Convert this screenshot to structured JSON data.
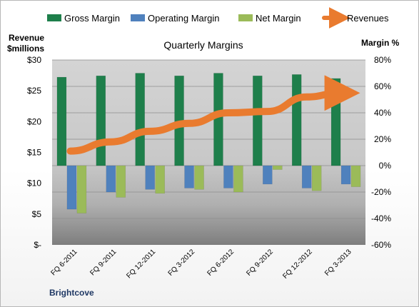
{
  "chart_data": {
    "type": "bar",
    "title": "Quarterly Margins",
    "left_axis_label_line1": "Revenue",
    "left_axis_label_line2": "$millions",
    "right_axis_label": "Margin %",
    "footer": "Brightcove",
    "categories": [
      "FQ 6-2011",
      "FQ 9-2011",
      "FQ 12-2011",
      "FQ 3-2012",
      "FQ 6-2012",
      "FQ 9-2012",
      "FQ 12-2012",
      "FQ 3-2013"
    ],
    "left_axis": {
      "ylim": [
        0,
        30
      ],
      "ticks": [
        0,
        5,
        10,
        15,
        20,
        25,
        30
      ],
      "tick_labels": [
        "$-",
        "$5",
        "$10",
        "$15",
        "$20",
        "$25",
        "$30"
      ]
    },
    "right_axis": {
      "ylim": [
        -60,
        80
      ],
      "ticks": [
        -60,
        -40,
        -20,
        0,
        20,
        40,
        60,
        80
      ],
      "tick_labels": [
        "-60%",
        "-40%",
        "-20%",
        "0%",
        "20%",
        "40%",
        "60%",
        "80%"
      ]
    },
    "series": [
      {
        "name": "Gross Margin",
        "type": "bar",
        "axis": "right",
        "color": "#1e7f4b",
        "values": [
          67,
          68,
          70,
          68,
          70,
          68,
          69,
          66
        ]
      },
      {
        "name": "Operating Margin",
        "type": "bar",
        "axis": "right",
        "color": "#4f81bd",
        "values": [
          -33,
          -20,
          -18,
          -17,
          -17,
          -14,
          -17,
          -14
        ]
      },
      {
        "name": "Net Margin",
        "type": "bar",
        "axis": "right",
        "color": "#9bbb59",
        "values": [
          -36,
          -24,
          -21,
          -18,
          -20,
          -3,
          -19,
          -16
        ]
      },
      {
        "name": "Revenues",
        "type": "line",
        "axis": "right",
        "color": "#e97b2f",
        "values": [
          11,
          18,
          26,
          32,
          40,
          41,
          52,
          55
        ]
      }
    ],
    "legend_position": "top",
    "grid": true
  }
}
